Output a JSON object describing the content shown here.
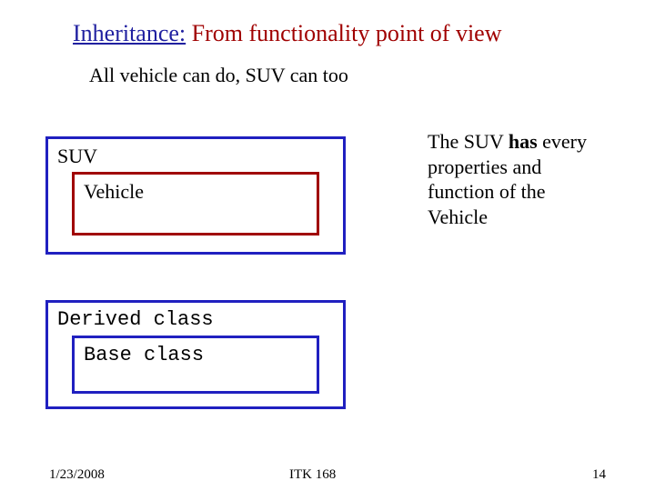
{
  "title": {
    "part1": "Inheritance:",
    "part2": " From functionality point of view",
    "color1": "#2020a0",
    "color2": "#a00000",
    "fontsize": 26
  },
  "subtitle": "All vehicle can do,   SUV can too",
  "suv_box": {
    "label": "SUV",
    "border_color": "#2020c0",
    "inner": {
      "label": "Vehicle",
      "border_color": "#a00000"
    }
  },
  "side_text": {
    "line1a": "The SUV ",
    "line1b": "has",
    "line1c": " every",
    "line2": " properties and",
    "line3": "function of the",
    "line4": "Vehicle"
  },
  "derived_box": {
    "label": "Derived class",
    "border_color": "#2020c0",
    "inner": {
      "label": "Base class",
      "border_color": "#2020c0"
    }
  },
  "footer": {
    "date": "1/23/2008",
    "course": "ITK 168",
    "page": "14"
  },
  "colors": {
    "background": "#ffffff",
    "text": "#000000"
  }
}
